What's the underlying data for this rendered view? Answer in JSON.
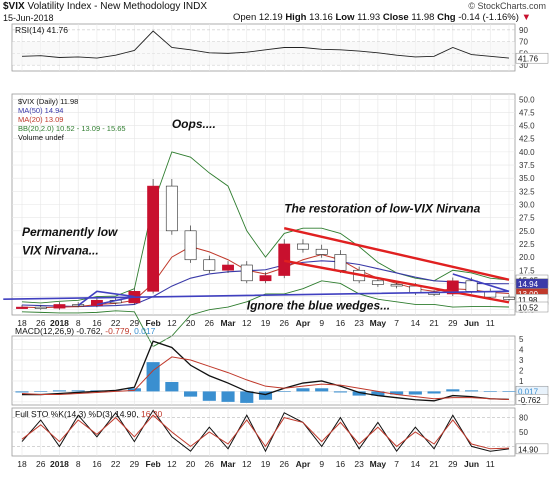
{
  "header": {
    "symbol": "$VIX",
    "description": "Volatility Index - New Methodology",
    "exchange": "INDX",
    "date": "15-Jun-2018",
    "open_label": "Open",
    "open": "12.19",
    "high_label": "High",
    "high": "13.16",
    "low_label": "Low",
    "low": "11.93",
    "close_label": "Close",
    "close": "11.98",
    "chg_label": "Chg",
    "chg": "-0.14 (-1.16%)",
    "chg_icon": "down-triangle-icon",
    "copyright": "© StockCharts.com"
  },
  "colors": {
    "price_up": "#2a2a2a",
    "price_down": "#c8102e",
    "ma50": "#3a3aa8",
    "ma20": "#c0392b",
    "bb": "#2f7d2f",
    "trend_red": "#e02020",
    "wedge_blue": "#4040c0",
    "annotation": "#111111",
    "hist": "#3a8fd0"
  },
  "chart_data": [
    {
      "type": "line",
      "panel": "rsi",
      "title": "RSI(14) 41.76",
      "y_ticks": [
        30,
        50,
        70,
        90
      ],
      "ylim": [
        20,
        100
      ],
      "current_value_label": "41.76",
      "x": [
        "Dec 18",
        "Dec 26",
        "2018",
        "Jan 8",
        "Jan 16",
        "Jan 22",
        "Jan 29",
        "Feb",
        "Feb 12",
        "Feb 20",
        "Feb 26",
        "Mar",
        "Mar 12",
        "Mar 19",
        "Mar 26",
        "Apr",
        "Apr 9",
        "Apr 16",
        "Apr 23",
        "May",
        "May 7",
        "May 14",
        "May 21",
        "May 29",
        "Jun",
        "Jun 11",
        "Jun 15"
      ],
      "values": [
        45,
        46,
        43,
        44,
        42,
        47,
        55,
        88,
        60,
        56,
        51,
        50,
        52,
        56,
        60,
        60,
        57,
        56,
        54,
        51,
        47,
        44,
        45,
        60,
        48,
        45,
        42
      ]
    },
    {
      "type": "candlestick",
      "panel": "price",
      "legend": [
        "$VIX (Daily) 11.98",
        "MA(50) 14.94",
        "MA(20) 13.09",
        "BB(20,2.0) 10.52 - 13.09 - 15.65",
        "Volume undef"
      ],
      "y_ticks": [
        10.0,
        12.5,
        15.0,
        17.5,
        20.0,
        22.5,
        25.0,
        27.5,
        30.0,
        32.5,
        35.0,
        37.5,
        40.0,
        42.5,
        45.0,
        47.5,
        50.0
      ],
      "y_tick_labels": [
        "10.0",
        "12.5",
        "15.0",
        "17.5",
        "20.0",
        "22.5",
        "25.0",
        "27.5",
        "30.0",
        "32.5",
        "35.0",
        "37.5",
        "40.0",
        "42.5",
        "45.0",
        "47.5",
        "50.0"
      ],
      "ylim": [
        9,
        51
      ],
      "x": [
        "Dec 18",
        "Dec 26",
        "2018",
        "Jan 8",
        "Jan 16",
        "Jan 22",
        "Jan 29",
        "Feb",
        "Feb 12",
        "Feb 20",
        "Feb 26",
        "Mar",
        "Mar 12",
        "Mar 19",
        "Mar 26",
        "Apr",
        "Apr 9",
        "Apr 16",
        "Apr 23",
        "May",
        "May 7",
        "May 14",
        "May 21",
        "May 29",
        "Jun",
        "Jun 11",
        "Jun 15"
      ],
      "close": [
        10.5,
        10.3,
        11.0,
        10.8,
        11.8,
        11.3,
        13.5,
        33.5,
        25.0,
        19.5,
        17.5,
        18.5,
        15.5,
        16.5,
        22.5,
        21.5,
        20.5,
        17.5,
        15.5,
        14.8,
        14.5,
        13.2,
        13.0,
        15.5,
        13.5,
        12.4,
        11.98
      ],
      "ma50": [
        10.9,
        10.8,
        10.7,
        10.6,
        10.7,
        10.8,
        11.0,
        12.5,
        14.5,
        16.0,
        16.8,
        17.2,
        17.4,
        17.6,
        18.5,
        19.0,
        19.3,
        19.1,
        18.6,
        17.8,
        17.0,
        16.2,
        15.5,
        15.3,
        15.0,
        14.95,
        14.94
      ],
      "ma20": [
        10.5,
        10.4,
        10.5,
        10.6,
        11.0,
        11.2,
        11.8,
        15.0,
        20.0,
        22.0,
        21.0,
        19.5,
        17.5,
        16.8,
        18.0,
        19.5,
        20.5,
        19.5,
        17.5,
        16.0,
        15.0,
        14.0,
        13.5,
        14.0,
        13.8,
        13.3,
        13.09
      ],
      "bb_upper": [
        11.5,
        11.3,
        11.6,
        11.8,
        12.5,
        12.6,
        14.0,
        30.0,
        40.0,
        39.0,
        36.0,
        33.5,
        25.0,
        20.0,
        24.5,
        25.5,
        25.5,
        24.5,
        22.0,
        19.0,
        17.0,
        16.0,
        15.5,
        17.5,
        17.0,
        16.0,
        15.65
      ],
      "bb_lower": [
        9.6,
        9.5,
        9.4,
        9.4,
        9.5,
        9.8,
        9.6,
        3.0,
        5.0,
        9.0,
        10.0,
        10.5,
        11.5,
        13.0,
        13.0,
        14.0,
        15.5,
        15.0,
        13.0,
        12.0,
        11.5,
        11.0,
        11.0,
        10.5,
        10.6,
        10.6,
        10.52
      ],
      "price_tags": [
        {
          "label": "15.65",
          "value": 15.65,
          "kind": "bb"
        },
        {
          "label": "14.94",
          "value": 14.94,
          "kind": "ma50"
        },
        {
          "label": "13.09",
          "value": 13.09,
          "kind": "ma20"
        },
        {
          "label": "11.98",
          "value": 11.98,
          "kind": "close"
        },
        {
          "label": "10.52",
          "value": 10.52,
          "kind": "bb"
        }
      ],
      "annotations": [
        {
          "text": "Oops....",
          "x": "Feb 12",
          "y": 44.5
        },
        {
          "text": "The restoration of low-VIX Nirvana",
          "x": "Mar 26",
          "y": 28.5
        },
        {
          "text": "Permanently low",
          "x": "Dec 18",
          "y": 24.0
        },
        {
          "text": "VIX Nirvana...",
          "x": "Dec 18",
          "y": 20.5
        },
        {
          "text": "Ignore the blue wedges...",
          "x": "Mar 12",
          "y": 10.0
        }
      ],
      "trend_channel": {
        "upper": [
          {
            "x": "Mar 26",
            "y": 25.5
          },
          {
            "x": "Jun 15",
            "y": 15.7
          }
        ],
        "lower": [
          {
            "x": "Mar 26",
            "y": 19.3
          },
          {
            "x": "Jun 15",
            "y": 11.4
          }
        ]
      },
      "wedges": [
        {
          "points": [
            {
              "x": "Jan 8",
              "y": 10.8
            },
            {
              "x": "Jan 16",
              "y": 13.5
            },
            {
              "x": "Jan 29",
              "y": 12.5
            },
            {
              "x": "Jan 16",
              "y": 11.0
            }
          ]
        },
        {
          "points": [
            {
              "x": "May 29",
              "y": 16.8
            },
            {
              "x": "Jun 15",
              "y": 13.5
            },
            {
              "x": "Jun 8",
              "y": 12.0
            }
          ]
        }
      ],
      "x_tick_labels": [
        "18",
        "26",
        "2018",
        "8",
        "16",
        "22",
        "29",
        "Feb",
        "12",
        "20",
        "26",
        "Mar",
        "12",
        "19",
        "26",
        "Apr",
        "9",
        "16",
        "23",
        "May",
        "7",
        "14",
        "21",
        "29",
        "Jun",
        "11"
      ]
    },
    {
      "type": "line",
      "panel": "macd",
      "title": "MACD(12,26,9) -0.762, -0.779, 0.017",
      "title_parts": [
        "MACD(12,26,9) -0.762, ",
        "-0.779, ",
        "0.017"
      ],
      "y_ticks": [
        -1,
        0,
        1,
        2,
        3,
        4,
        5
      ],
      "ylim": [
        -1.3,
        5.3
      ],
      "value_tags": [
        {
          "label": "0.017",
          "value": 0.017
        },
        {
          "label": "-0.762",
          "value": -0.762
        }
      ],
      "x": [
        "Dec 18",
        "Dec 26",
        "2018",
        "Jan 8",
        "Jan 16",
        "Jan 22",
        "Jan 29",
        "Feb",
        "Feb 12",
        "Feb 20",
        "Feb 26",
        "Mar",
        "Mar 12",
        "Mar 19",
        "Mar 26",
        "Apr",
        "Apr 9",
        "Apr 16",
        "Apr 23",
        "May",
        "May 7",
        "May 14",
        "May 21",
        "May 29",
        "Jun",
        "Jun 11",
        "Jun 15"
      ],
      "series": [
        {
          "values": [
            -0.3,
            -0.3,
            -0.2,
            -0.1,
            0.0,
            0.1,
            0.4,
            4.8,
            4.2,
            2.5,
            1.5,
            0.8,
            0.0,
            -0.3,
            0.3,
            0.8,
            1.0,
            0.5,
            -0.1,
            -0.4,
            -0.6,
            -0.8,
            -0.9,
            -0.4,
            -0.5,
            -0.7,
            -0.762
          ]
        },
        {
          "values": [
            -0.2,
            -0.3,
            -0.3,
            -0.2,
            -0.1,
            0.0,
            0.1,
            2.0,
            3.3,
            3.0,
            2.4,
            1.8,
            1.1,
            0.5,
            0.3,
            0.5,
            0.7,
            0.6,
            0.3,
            0.0,
            -0.3,
            -0.5,
            -0.7,
            -0.6,
            -0.6,
            -0.7,
            -0.779
          ]
        },
        {
          "values": [
            -0.1,
            0.0,
            0.1,
            0.1,
            0.1,
            0.1,
            0.3,
            2.8,
            0.9,
            -0.5,
            -0.9,
            -1.0,
            -1.1,
            -0.8,
            0.0,
            0.3,
            0.3,
            -0.1,
            -0.4,
            -0.4,
            -0.3,
            -0.3,
            -0.2,
            0.2,
            0.1,
            0.0,
            0.017
          ]
        }
      ]
    },
    {
      "type": "line",
      "panel": "sto",
      "title": "Full STO %K(14,3) %D(3) 14.90, 16.30",
      "title_parts": [
        "Full STO %K(14,3) %D(3) 14.90, ",
        "16.30"
      ],
      "y_ticks": [
        20,
        50,
        80
      ],
      "ylim": [
        0,
        100
      ],
      "value_tags": [
        {
          "label": "14.90",
          "value": 14.9
        }
      ],
      "x": [
        "Dec 18",
        "Dec 26",
        "2018",
        "Jan 8",
        "Jan 16",
        "Jan 22",
        "Jan 29",
        "Feb",
        "Feb 12",
        "Feb 20",
        "Feb 26",
        "Mar",
        "Mar 12",
        "Mar 19",
        "Mar 26",
        "Apr",
        "Apr 9",
        "Apr 16",
        "Apr 23",
        "May",
        "May 7",
        "May 14",
        "May 21",
        "May 29",
        "Jun",
        "Jun 11",
        "Jun 15"
      ],
      "series": [
        {
          "values": [
            30,
            75,
            20,
            85,
            40,
            90,
            30,
            95,
            40,
            10,
            60,
            15,
            85,
            10,
            90,
            70,
            20,
            80,
            15,
            70,
            10,
            60,
            15,
            85,
            20,
            10,
            14.9
          ]
        },
        {
          "values": [
            35,
            65,
            30,
            75,
            45,
            80,
            40,
            85,
            50,
            20,
            50,
            25,
            75,
            20,
            80,
            70,
            30,
            70,
            25,
            60,
            20,
            50,
            25,
            75,
            25,
            15,
            16.3
          ]
        }
      ]
    }
  ]
}
